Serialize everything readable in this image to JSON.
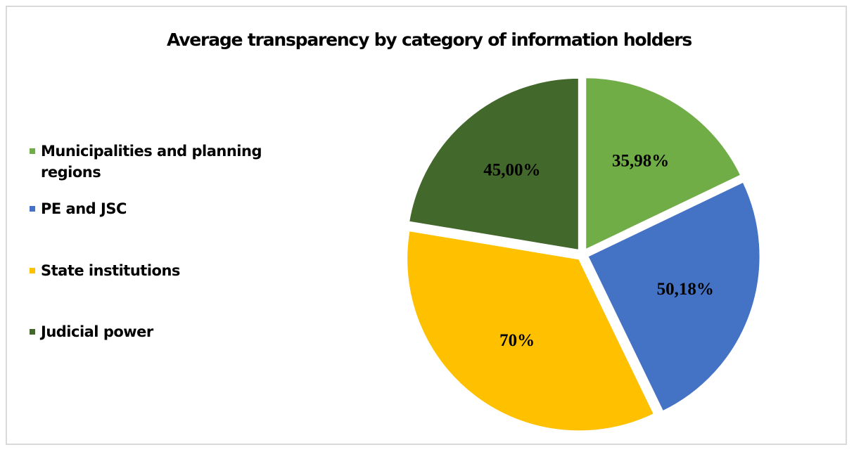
{
  "chart_data": {
    "type": "pie",
    "title": "Average transparency by category of information holders",
    "categories": [
      "Municipalities and planning regions",
      "PE and JSC",
      "State institutions",
      "Judicial power"
    ],
    "values": [
      35.98,
      50.18,
      70,
      45
    ],
    "value_labels": [
      "35,98%",
      "50,18%",
      "70%",
      "45,00%"
    ],
    "colors": [
      "#70ad47",
      "#4472c4",
      "#ffc000",
      "#43682b"
    ],
    "legend": "left"
  }
}
